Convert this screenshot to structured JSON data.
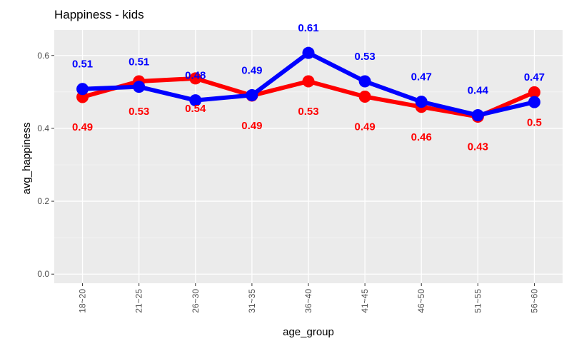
{
  "chart_data": {
    "type": "line",
    "title": "Happiness - kids",
    "xlabel": "age_group",
    "ylabel": "avg_happiness",
    "categories": [
      "18~20",
      "21~25",
      "26~30",
      "31~35",
      "36~40",
      "41~45",
      "46~50",
      "51~55",
      "56~60"
    ],
    "yticks": [
      "0.0",
      "0.2",
      "0.4",
      "0.6"
    ],
    "ylim": [
      -0.025,
      0.67
    ],
    "grid": true,
    "legend": "none",
    "series": [
      {
        "color": "#ff0000",
        "values": [
          0.486,
          0.529,
          0.537,
          0.49,
          0.529,
          0.487,
          0.459,
          0.432,
          0.499
        ],
        "labels": [
          "0.49",
          "0.53",
          "0.54",
          "0.49",
          "0.53",
          "0.49",
          "0.46",
          "0.43",
          "0.5"
        ]
      },
      {
        "color": "#0000ff",
        "values": [
          0.508,
          0.514,
          0.477,
          0.491,
          0.607,
          0.529,
          0.473,
          0.436,
          0.472
        ],
        "labels": [
          "0.51",
          "0.51",
          "0.48",
          "0.49",
          "0.61",
          "0.53",
          "0.47",
          "0.44",
          "0.47"
        ]
      }
    ]
  }
}
